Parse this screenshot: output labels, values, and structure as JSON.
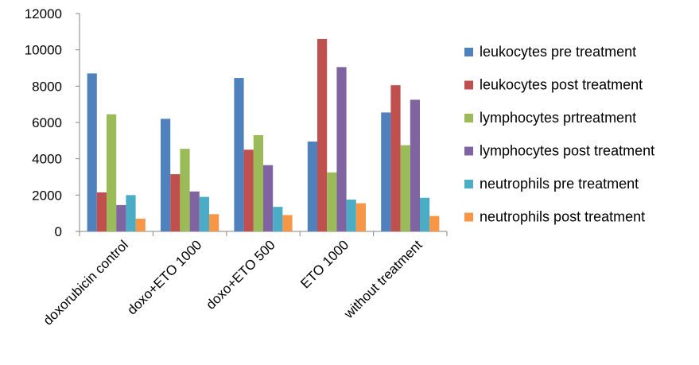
{
  "chart_data": {
    "type": "bar",
    "title": "",
    "xlabel": "",
    "ylabel": "",
    "ylim": [
      0,
      12000
    ],
    "yticks": [
      0,
      2000,
      4000,
      6000,
      8000,
      10000,
      12000
    ],
    "ytick_labels": [
      "0",
      "2000",
      "4000",
      "6000",
      "8000",
      "10000",
      "12000"
    ],
    "grid": false,
    "legend_position": "right",
    "categories": [
      "doxorubicin control",
      "doxo+ETO 1000",
      "doxo+ETO 500",
      "ETO 1000",
      "without treatment"
    ],
    "series": [
      {
        "name": "leukocytes pre treatment",
        "color": "#4f81bd",
        "values": [
          8700,
          6200,
          8450,
          4950,
          6550
        ]
      },
      {
        "name": "leukocytes post treatment",
        "color": "#c0504d",
        "values": [
          2150,
          3150,
          4500,
          10600,
          8050
        ]
      },
      {
        "name": "lymphocytes pr",
        "name_tail": "treatment",
        "color": "#9bbb59",
        "values": [
          6450,
          4550,
          5300,
          3250,
          4750
        ]
      },
      {
        "name": "lymphocytes post treatment",
        "color": "#8064a2",
        "values": [
          1450,
          2200,
          3650,
          9050,
          7250
        ]
      },
      {
        "name": "neutrophils pre treatment",
        "color": "#4bacc6",
        "values": [
          2000,
          1900,
          1350,
          1750,
          1850
        ]
      },
      {
        "name": "neutrophils post treatment",
        "color": "#f79646",
        "values": [
          700,
          950,
          900,
          1550,
          850
        ]
      }
    ]
  }
}
